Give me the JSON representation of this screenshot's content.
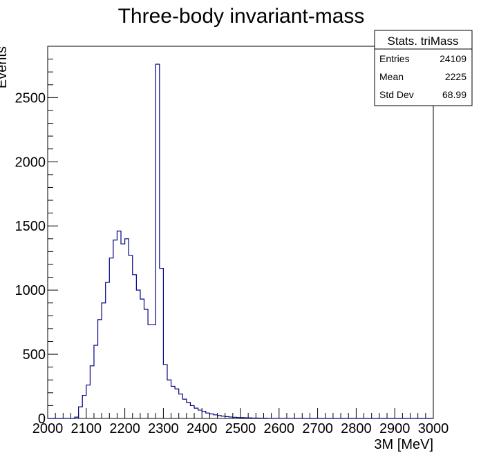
{
  "chart_data": {
    "type": "bar",
    "title": "Three-body invariant-mass",
    "xlabel": "3M [MeV]",
    "ylabel": "Events",
    "xlim": [
      2000,
      3000
    ],
    "ylim": [
      0,
      2900
    ],
    "grid": false,
    "x_ticks": [
      2000,
      2100,
      2200,
      2300,
      2400,
      2500,
      2600,
      2700,
      2800,
      2900,
      3000
    ],
    "y_ticks": [
      0,
      500,
      1000,
      1500,
      2000,
      2500
    ],
    "bin_width": 10,
    "bin_edges_start": 2000,
    "values": [
      0,
      0,
      0,
      0,
      0,
      0,
      0,
      10,
      90,
      180,
      260,
      410,
      570,
      770,
      900,
      1060,
      1250,
      1390,
      1460,
      1360,
      1400,
      1270,
      1120,
      1000,
      930,
      850,
      730,
      730,
      2760,
      1170,
      420,
      300,
      250,
      230,
      190,
      150,
      125,
      100,
      80,
      65,
      55,
      42,
      35,
      28,
      22,
      18,
      14,
      11,
      9,
      7,
      6,
      5,
      4,
      3,
      3,
      2,
      2,
      1,
      1,
      1,
      1,
      1,
      1,
      1,
      0,
      1,
      0,
      0,
      0,
      0,
      0,
      0,
      0,
      0,
      0,
      0,
      0,
      0,
      0,
      0,
      0,
      0,
      0,
      0,
      0,
      0,
      0,
      0,
      0,
      0,
      0,
      0,
      0,
      0,
      0,
      0,
      0,
      0,
      0,
      0
    ],
    "line_color": "#000080",
    "stats": {
      "title": "Stats. triMass",
      "rows": [
        {
          "label": "Entries",
          "value": "24109"
        },
        {
          "label": "Mean",
          "value": "2225"
        },
        {
          "label": "Std Dev",
          "value": "68.99"
        }
      ]
    }
  }
}
